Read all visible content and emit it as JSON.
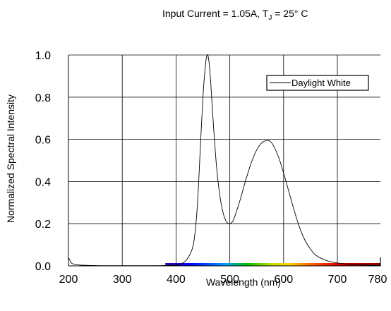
{
  "chart_data": {
    "type": "line",
    "title_main": "Input Current = 1.05A, T",
    "title_sub": "J",
    "title_tail": " = 25° C",
    "xlabel": "Wavelength (nm)",
    "ylabel": "Normalized Spectral Intensity",
    "xlim": [
      200,
      780
    ],
    "ylim": [
      0,
      1.0
    ],
    "x_ticks": [
      200,
      300,
      400,
      500,
      600,
      700,
      780
    ],
    "y_ticks": [
      0.0,
      0.2,
      0.4,
      0.6,
      0.8,
      1.0
    ],
    "x_tick_labels": [
      "200",
      "300",
      "400",
      "500",
      "600",
      "700",
      "780"
    ],
    "y_tick_labels": [
      "0.0",
      "0.2",
      "0.4",
      "0.6",
      "0.8",
      "1.0"
    ],
    "grid": true,
    "legend_position": "top-right",
    "spectrum_bar": {
      "x_start": 380,
      "x_end": 780
    },
    "series": [
      {
        "name": "Daylight White",
        "color": "#000000",
        "x": [
          200,
          202,
          205,
          210,
          220,
          240,
          260,
          300,
          350,
          380,
          400,
          410,
          420,
          430,
          435,
          440,
          445,
          450,
          455,
          458,
          460,
          462,
          465,
          470,
          475,
          480,
          485,
          490,
          495,
          500,
          505,
          510,
          520,
          530,
          540,
          550,
          560,
          570,
          575,
          580,
          590,
          600,
          610,
          620,
          630,
          640,
          650,
          660,
          680,
          700,
          720,
          740,
          760,
          780
        ],
        "y": [
          0.04,
          0.03,
          0.015,
          0.008,
          0.004,
          0.002,
          0.001,
          0.001,
          0.001,
          0.002,
          0.004,
          0.01,
          0.03,
          0.08,
          0.15,
          0.3,
          0.55,
          0.8,
          0.96,
          1.0,
          0.99,
          0.95,
          0.85,
          0.65,
          0.48,
          0.36,
          0.28,
          0.23,
          0.205,
          0.2,
          0.21,
          0.24,
          0.32,
          0.41,
          0.49,
          0.55,
          0.585,
          0.595,
          0.59,
          0.575,
          0.52,
          0.44,
          0.35,
          0.26,
          0.18,
          0.12,
          0.08,
          0.05,
          0.025,
          0.014,
          0.008,
          0.005,
          0.003,
          0.002
        ]
      }
    ]
  }
}
